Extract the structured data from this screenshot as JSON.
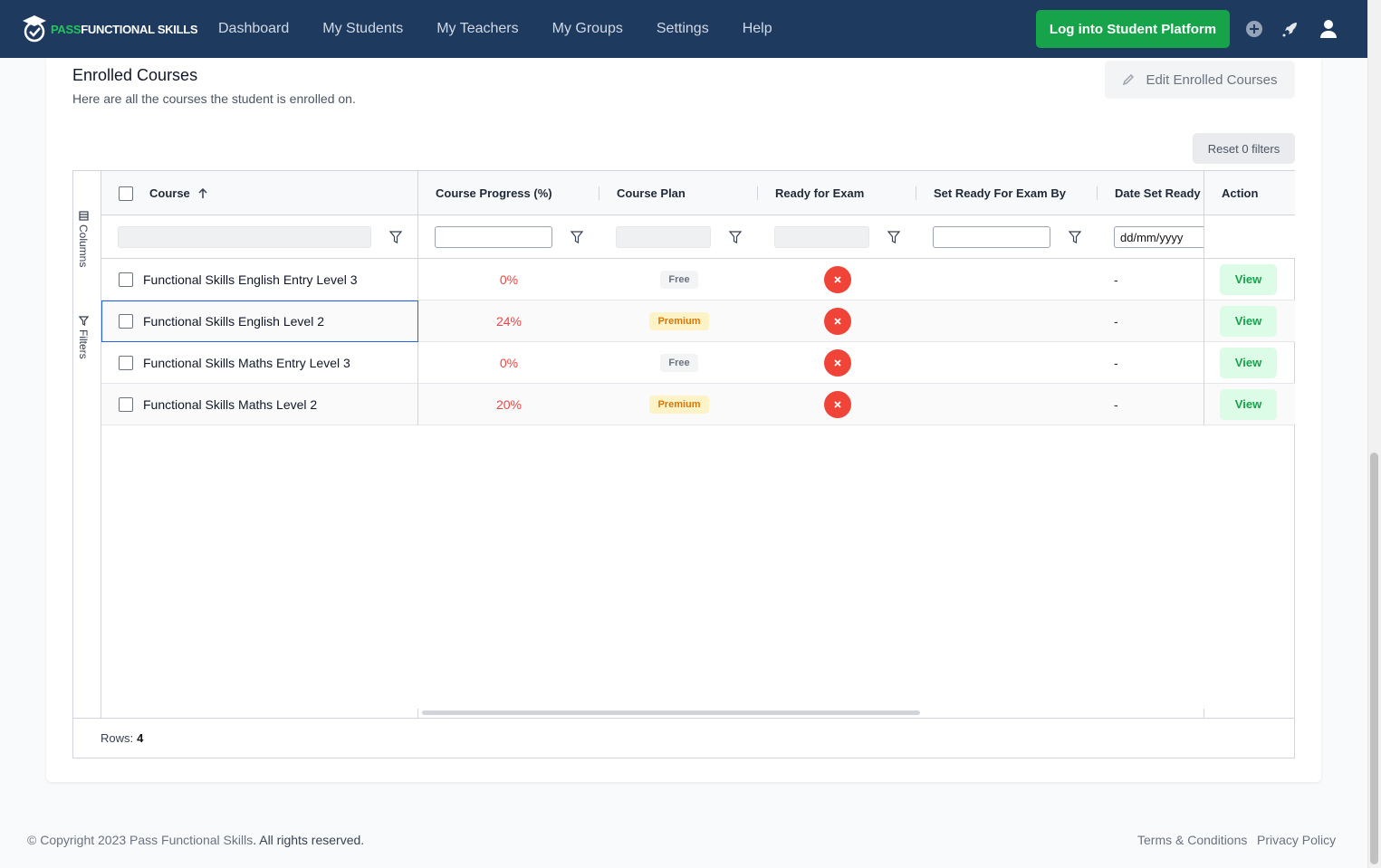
{
  "brand": {
    "prefix": "PASS",
    "suffix": "FUNCTIONAL SKILLS"
  },
  "nav": [
    "Dashboard",
    "My Students",
    "My Teachers",
    "My Groups",
    "Settings",
    "Help"
  ],
  "header": {
    "login_label": "Log into Student Platform"
  },
  "section": {
    "title": "Enrolled Courses",
    "subtitle": "Here are all the courses the student is enrolled on.",
    "edit_label": "Edit Enrolled Courses",
    "reset_label": "Reset 0 filters"
  },
  "grid": {
    "side_tabs": {
      "columns": "Columns",
      "filters": "Filters"
    },
    "columns": {
      "course": "Course",
      "progress": "Course Progress (%)",
      "plan": "Course Plan",
      "ready": "Ready for Exam",
      "set_by": "Set Ready For Exam By",
      "date_set": "Date Set Ready",
      "action": "Action"
    },
    "date_placeholder": "dd/mm/yyyy",
    "rows": [
      {
        "course": "Functional Skills English Entry Level 3",
        "progress": "0%",
        "plan": "Free",
        "ready": false,
        "set_by": "",
        "date_set": "-",
        "action": "View"
      },
      {
        "course": "Functional Skills English Level 2",
        "progress": "24%",
        "plan": "Premium",
        "ready": false,
        "set_by": "",
        "date_set": "-",
        "action": "View"
      },
      {
        "course": "Functional Skills Maths Entry Level 3",
        "progress": "0%",
        "plan": "Free",
        "ready": false,
        "set_by": "",
        "date_set": "-",
        "action": "View"
      },
      {
        "course": "Functional Skills Maths Level 2",
        "progress": "20%",
        "plan": "Premium",
        "ready": false,
        "set_by": "",
        "date_set": "-",
        "action": "View"
      }
    ],
    "rows_label": "Rows:",
    "rows_count": "4"
  },
  "footer": {
    "copyright_prefix": "© Copyright 2023 ",
    "copyright_brand": "Pass Functional Skills",
    "copyright_rest": ". All rights reserved.",
    "terms": "Terms & Conditions",
    "privacy": "Privacy Policy"
  },
  "colors": {
    "header_bg": "#1e3a5f",
    "accent_green": "#16a34a",
    "danger_red": "#f04438"
  },
  "icons": [
    "logo-icon",
    "plus-icon",
    "rocket-icon",
    "user-icon",
    "pencil-icon",
    "columns-icon",
    "filter-icon",
    "sort-asc-icon",
    "close-icon"
  ]
}
